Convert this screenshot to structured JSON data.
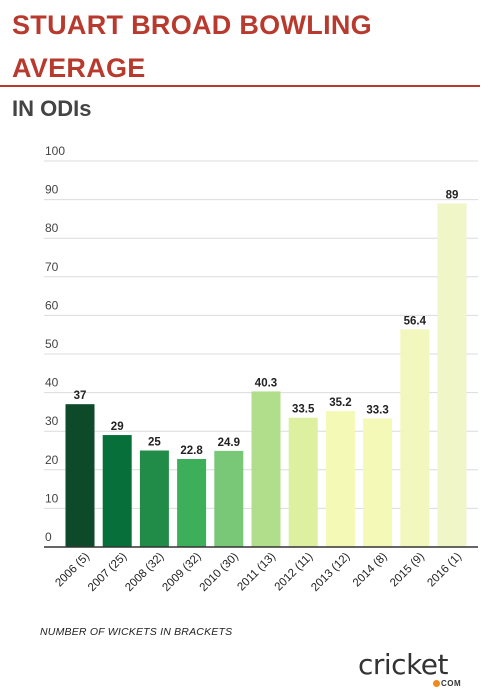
{
  "header": {
    "title": "STUART BROAD BOWLING AVERAGE",
    "subtitle": "IN ODIs"
  },
  "footnote": "NUMBER OF WICKETS IN BRACKETS",
  "logo": {
    "text": "cricket",
    "suffix": "COM",
    "dot_color": "#f08a1c"
  },
  "chart_data": {
    "type": "bar",
    "title": "STUART BROAD BOWLING AVERAGE",
    "subtitle": "IN ODIs",
    "categories": [
      "2006 (5)",
      "2007 (25)",
      "2008 (32)",
      "2009 (32)",
      "2010 (30)",
      "2011 (13)",
      "2012 (11)",
      "2013 (12)",
      "2014 (8)",
      "2015 (9)",
      "2016 (1)"
    ],
    "values": [
      37,
      29,
      25,
      22.8,
      24.9,
      40.3,
      33.5,
      35.2,
      33.3,
      56.4,
      89
    ],
    "value_labels": [
      "37",
      "29",
      "25",
      "22.8",
      "24.9",
      "40.3",
      "33.5",
      "35.2",
      "33.3",
      "56.4",
      "89"
    ],
    "bar_colors": [
      "#0d4a2a",
      "#07703a",
      "#218b48",
      "#3daf5a",
      "#78c878",
      "#b0de8a",
      "#dcf0a0",
      "#f4f9b6",
      "#f4f9b8",
      "#f1f7bd",
      "#f0f6c8"
    ],
    "yticks": [
      0,
      10,
      20,
      30,
      40,
      50,
      60,
      70,
      80,
      90,
      100
    ],
    "ylim": [
      0,
      100
    ],
    "xlabel": "",
    "ylabel": "",
    "grid": true
  }
}
